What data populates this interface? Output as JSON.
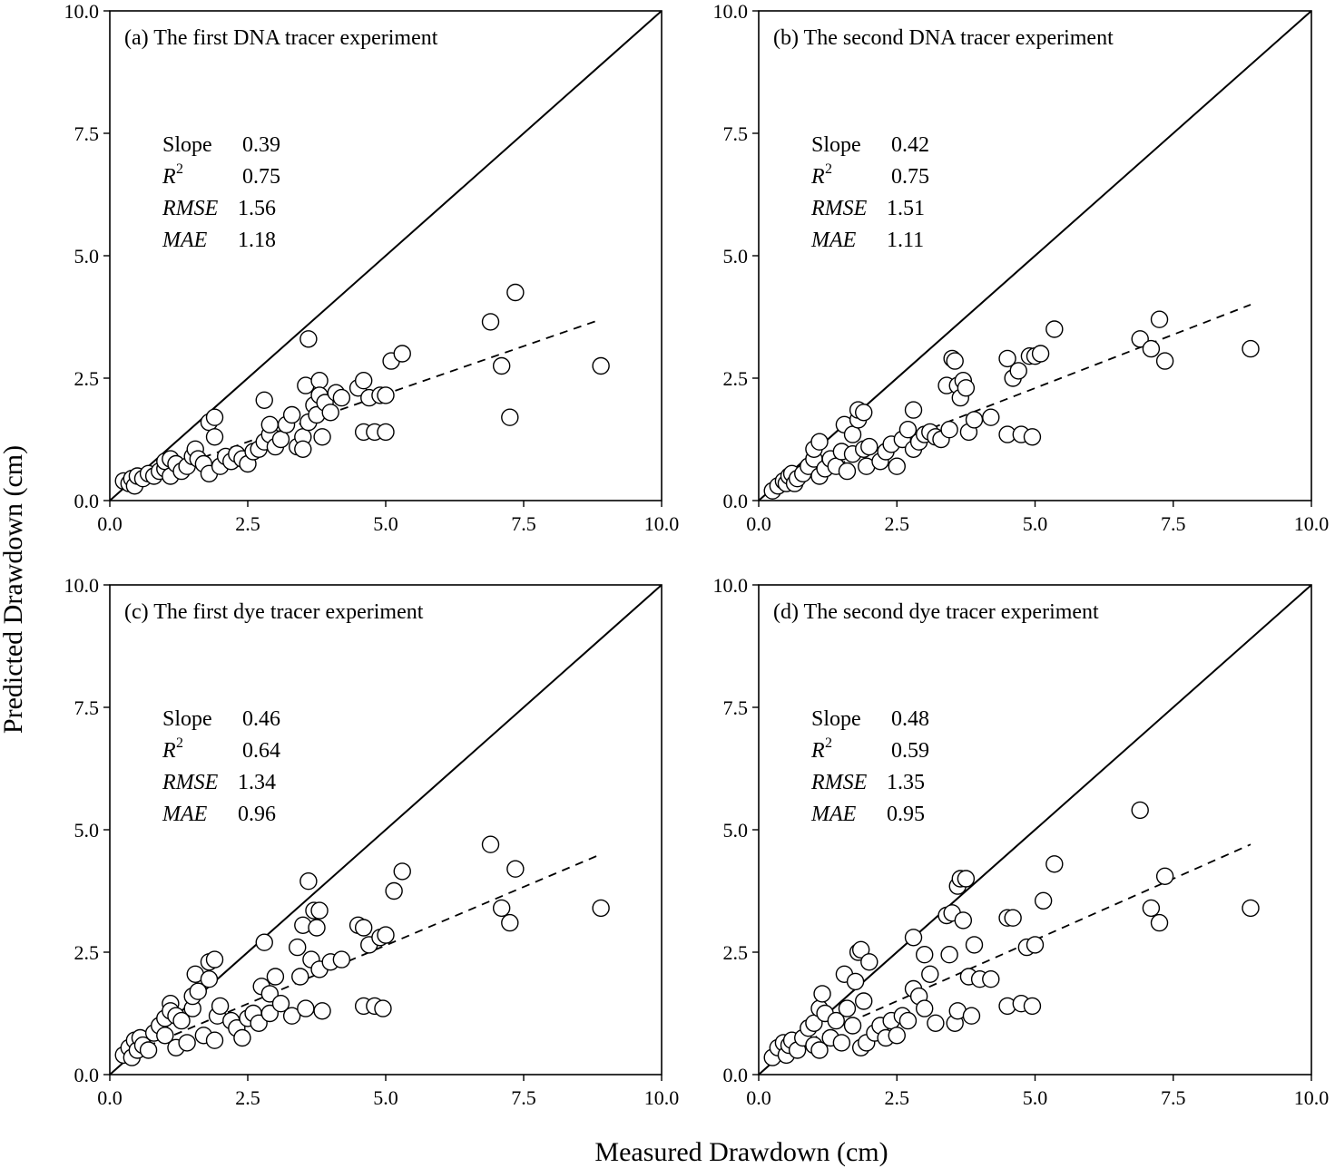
{
  "figure": {
    "xlabel": "Measured Drawdown (cm)",
    "ylabel": "Predicted Drawdown (cm)"
  },
  "chart_data": [
    {
      "type": "scatter",
      "panel": "a",
      "title": "(a) The first DNA tracer experiment",
      "xlim": [
        0,
        10
      ],
      "ylim": [
        0,
        10
      ],
      "xticks": [
        "0.0",
        "2.5",
        "5.0",
        "7.5",
        "10.0"
      ],
      "yticks": [
        "0.0",
        "2.5",
        "5.0",
        "7.5",
        "10.0"
      ],
      "reference_line": {
        "style": "solid",
        "from": [
          0,
          0
        ],
        "to": [
          10,
          10
        ]
      },
      "fit_line": {
        "style": "dashed",
        "from": [
          0.2,
          0.3
        ],
        "to": [
          8.9,
          3.7
        ]
      },
      "stats": [
        {
          "label": "Slope",
          "italic": false,
          "sup": "",
          "value": "0.39"
        },
        {
          "label": "R",
          "italic": true,
          "sup": "2",
          "value": "0.75"
        },
        {
          "label": "RMSE",
          "italic": true,
          "sup": "",
          "value": "1.56"
        },
        {
          "label": "MAE",
          "italic": true,
          "sup": "",
          "value": "1.18"
        }
      ],
      "points": [
        [
          0.25,
          0.4
        ],
        [
          0.35,
          0.35
        ],
        [
          0.4,
          0.45
        ],
        [
          0.45,
          0.3
        ],
        [
          0.5,
          0.5
        ],
        [
          0.6,
          0.45
        ],
        [
          0.7,
          0.55
        ],
        [
          0.8,
          0.5
        ],
        [
          0.9,
          0.6
        ],
        [
          1.0,
          0.65
        ],
        [
          1.0,
          0.8
        ],
        [
          1.1,
          0.85
        ],
        [
          1.1,
          0.5
        ],
        [
          1.2,
          0.75
        ],
        [
          1.3,
          0.6
        ],
        [
          1.4,
          0.7
        ],
        [
          1.5,
          0.9
        ],
        [
          1.55,
          1.05
        ],
        [
          1.6,
          0.85
        ],
        [
          1.7,
          0.75
        ],
        [
          1.8,
          0.55
        ],
        [
          1.8,
          1.6
        ],
        [
          1.9,
          1.7
        ],
        [
          1.9,
          1.3
        ],
        [
          2.0,
          0.7
        ],
        [
          2.1,
          0.9
        ],
        [
          2.2,
          0.8
        ],
        [
          2.3,
          0.95
        ],
        [
          2.4,
          0.85
        ],
        [
          2.5,
          0.75
        ],
        [
          2.6,
          1.0
        ],
        [
          2.7,
          1.05
        ],
        [
          2.8,
          1.2
        ],
        [
          2.8,
          2.05
        ],
        [
          2.9,
          1.35
        ],
        [
          2.9,
          1.55
        ],
        [
          3.0,
          1.1
        ],
        [
          3.1,
          1.25
        ],
        [
          3.2,
          1.55
        ],
        [
          3.3,
          1.75
        ],
        [
          3.4,
          1.1
        ],
        [
          3.5,
          1.3
        ],
        [
          3.5,
          1.05
        ],
        [
          3.55,
          2.35
        ],
        [
          3.6,
          1.6
        ],
        [
          3.6,
          3.3
        ],
        [
          3.7,
          1.95
        ],
        [
          3.75,
          1.75
        ],
        [
          3.8,
          2.45
        ],
        [
          3.8,
          2.15
        ],
        [
          3.85,
          1.3
        ],
        [
          3.9,
          2.0
        ],
        [
          4.0,
          1.8
        ],
        [
          4.1,
          2.2
        ],
        [
          4.2,
          2.1
        ],
        [
          4.5,
          2.3
        ],
        [
          4.6,
          2.45
        ],
        [
          4.7,
          2.1
        ],
        [
          4.6,
          1.4
        ],
        [
          4.8,
          1.4
        ],
        [
          4.9,
          2.15
        ],
        [
          5.0,
          1.4
        ],
        [
          5.0,
          2.15
        ],
        [
          5.1,
          2.85
        ],
        [
          5.3,
          3.0
        ],
        [
          6.9,
          3.65
        ],
        [
          7.1,
          2.75
        ],
        [
          7.25,
          1.7
        ],
        [
          7.35,
          4.25
        ],
        [
          8.9,
          2.75
        ]
      ]
    },
    {
      "type": "scatter",
      "panel": "b",
      "title": "(b) The second DNA tracer experiment",
      "xlim": [
        0,
        10
      ],
      "ylim": [
        0,
        10
      ],
      "xticks": [
        "0.0",
        "2.5",
        "5.0",
        "7.5",
        "10.0"
      ],
      "yticks": [
        "0.0",
        "2.5",
        "5.0",
        "7.5",
        "10.0"
      ],
      "reference_line": {
        "style": "solid",
        "from": [
          0,
          0
        ],
        "to": [
          10,
          10
        ]
      },
      "fit_line": {
        "style": "dashed",
        "from": [
          0.2,
          0.2
        ],
        "to": [
          8.9,
          4.0
        ]
      },
      "stats": [
        {
          "label": "Slope",
          "italic": false,
          "sup": "",
          "value": "0.42"
        },
        {
          "label": "R",
          "italic": true,
          "sup": "2",
          "value": "0.75"
        },
        {
          "label": "RMSE",
          "italic": true,
          "sup": "",
          "value": "1.51"
        },
        {
          "label": "MAE",
          "italic": true,
          "sup": "",
          "value": "1.11"
        }
      ],
      "points": [
        [
          0.25,
          0.2
        ],
        [
          0.35,
          0.3
        ],
        [
          0.45,
          0.4
        ],
        [
          0.5,
          0.35
        ],
        [
          0.55,
          0.5
        ],
        [
          0.6,
          0.55
        ],
        [
          0.65,
          0.35
        ],
        [
          0.7,
          0.45
        ],
        [
          0.8,
          0.55
        ],
        [
          0.9,
          0.7
        ],
        [
          1.0,
          0.85
        ],
        [
          1.0,
          1.05
        ],
        [
          1.1,
          1.2
        ],
        [
          1.1,
          0.5
        ],
        [
          1.2,
          0.65
        ],
        [
          1.3,
          0.85
        ],
        [
          1.4,
          0.7
        ],
        [
          1.5,
          1.0
        ],
        [
          1.55,
          1.55
        ],
        [
          1.6,
          0.6
        ],
        [
          1.7,
          1.35
        ],
        [
          1.7,
          0.95
        ],
        [
          1.8,
          1.65
        ],
        [
          1.8,
          1.85
        ],
        [
          1.9,
          1.8
        ],
        [
          1.9,
          1.05
        ],
        [
          1.95,
          0.7
        ],
        [
          2.0,
          1.1
        ],
        [
          2.2,
          0.8
        ],
        [
          2.3,
          1.0
        ],
        [
          2.4,
          1.15
        ],
        [
          2.5,
          0.7
        ],
        [
          2.6,
          1.25
        ],
        [
          2.7,
          1.45
        ],
        [
          2.8,
          1.85
        ],
        [
          2.8,
          1.05
        ],
        [
          2.9,
          1.2
        ],
        [
          3.0,
          1.35
        ],
        [
          3.1,
          1.4
        ],
        [
          3.2,
          1.3
        ],
        [
          3.3,
          1.25
        ],
        [
          3.4,
          2.35
        ],
        [
          3.45,
          1.45
        ],
        [
          3.5,
          2.9
        ],
        [
          3.55,
          2.85
        ],
        [
          3.6,
          2.35
        ],
        [
          3.65,
          2.1
        ],
        [
          3.7,
          2.45
        ],
        [
          3.75,
          2.3
        ],
        [
          3.8,
          1.4
        ],
        [
          3.9,
          1.65
        ],
        [
          4.2,
          1.7
        ],
        [
          4.5,
          2.9
        ],
        [
          4.5,
          1.35
        ],
        [
          4.6,
          2.5
        ],
        [
          4.7,
          2.65
        ],
        [
          4.75,
          1.35
        ],
        [
          4.9,
          2.95
        ],
        [
          4.95,
          1.3
        ],
        [
          5.0,
          2.95
        ],
        [
          5.1,
          3.0
        ],
        [
          5.35,
          3.5
        ],
        [
          6.9,
          3.3
        ],
        [
          7.1,
          3.1
        ],
        [
          7.25,
          3.7
        ],
        [
          7.35,
          2.85
        ],
        [
          8.9,
          3.1
        ]
      ]
    },
    {
      "type": "scatter",
      "panel": "c",
      "title": "(c) The first dye tracer experiment",
      "xlim": [
        0,
        10
      ],
      "ylim": [
        0,
        10
      ],
      "xticks": [
        "0.0",
        "2.5",
        "5.0",
        "7.5",
        "10.0"
      ],
      "yticks": [
        "0.0",
        "2.5",
        "5.0",
        "7.5",
        "10.0"
      ],
      "reference_line": {
        "style": "solid",
        "from": [
          0,
          0
        ],
        "to": [
          10,
          10
        ]
      },
      "fit_line": {
        "style": "dashed",
        "from": [
          0.2,
          0.35
        ],
        "to": [
          8.9,
          4.5
        ]
      },
      "stats": [
        {
          "label": "Slope",
          "italic": false,
          "sup": "",
          "value": "0.46"
        },
        {
          "label": "R",
          "italic": true,
          "sup": "2",
          "value": "0.64"
        },
        {
          "label": "RMSE",
          "italic": true,
          "sup": "",
          "value": "1.34"
        },
        {
          "label": "MAE",
          "italic": true,
          "sup": "",
          "value": "0.96"
        }
      ],
      "points": [
        [
          0.25,
          0.4
        ],
        [
          0.35,
          0.55
        ],
        [
          0.4,
          0.35
        ],
        [
          0.45,
          0.7
        ],
        [
          0.5,
          0.5
        ],
        [
          0.55,
          0.75
        ],
        [
          0.6,
          0.6
        ],
        [
          0.7,
          0.5
        ],
        [
          0.8,
          0.85
        ],
        [
          0.9,
          1.0
        ],
        [
          1.0,
          1.15
        ],
        [
          1.0,
          0.8
        ],
        [
          1.1,
          1.45
        ],
        [
          1.1,
          1.3
        ],
        [
          1.2,
          0.55
        ],
        [
          1.2,
          1.2
        ],
        [
          1.3,
          1.1
        ],
        [
          1.4,
          0.65
        ],
        [
          1.5,
          1.35
        ],
        [
          1.5,
          1.6
        ],
        [
          1.55,
          2.05
        ],
        [
          1.6,
          1.7
        ],
        [
          1.7,
          0.8
        ],
        [
          1.8,
          1.95
        ],
        [
          1.8,
          2.3
        ],
        [
          1.9,
          2.35
        ],
        [
          1.9,
          0.7
        ],
        [
          1.95,
          1.2
        ],
        [
          2.0,
          1.4
        ],
        [
          2.2,
          1.1
        ],
        [
          2.3,
          0.95
        ],
        [
          2.4,
          0.75
        ],
        [
          2.5,
          1.15
        ],
        [
          2.6,
          1.25
        ],
        [
          2.7,
          1.05
        ],
        [
          2.75,
          1.8
        ],
        [
          2.8,
          2.7
        ],
        [
          2.9,
          1.25
        ],
        [
          2.9,
          1.65
        ],
        [
          3.0,
          2.0
        ],
        [
          3.1,
          1.45
        ],
        [
          3.3,
          1.2
        ],
        [
          3.4,
          2.6
        ],
        [
          3.45,
          2.0
        ],
        [
          3.5,
          3.05
        ],
        [
          3.55,
          1.35
        ],
        [
          3.6,
          3.95
        ],
        [
          3.65,
          2.35
        ],
        [
          3.7,
          3.35
        ],
        [
          3.75,
          3.0
        ],
        [
          3.8,
          3.35
        ],
        [
          3.8,
          2.15
        ],
        [
          3.85,
          1.3
        ],
        [
          4.0,
          2.3
        ],
        [
          4.2,
          2.35
        ],
        [
          4.5,
          3.05
        ],
        [
          4.6,
          1.4
        ],
        [
          4.6,
          3.0
        ],
        [
          4.7,
          2.65
        ],
        [
          4.8,
          1.4
        ],
        [
          4.9,
          2.8
        ],
        [
          4.95,
          1.35
        ],
        [
          5.0,
          2.85
        ],
        [
          5.15,
          3.75
        ],
        [
          5.3,
          4.15
        ],
        [
          6.9,
          4.7
        ],
        [
          7.1,
          3.4
        ],
        [
          7.25,
          3.1
        ],
        [
          7.35,
          4.2
        ],
        [
          8.9,
          3.4
        ]
      ]
    },
    {
      "type": "scatter",
      "panel": "d",
      "title": "(d) The second dye tracer experiment",
      "xlim": [
        0,
        10
      ],
      "ylim": [
        0,
        10
      ],
      "xticks": [
        "0.0",
        "2.5",
        "5.0",
        "7.5",
        "10.0"
      ],
      "yticks": [
        "0.0",
        "2.5",
        "5.0",
        "7.5",
        "10.0"
      ],
      "reference_line": {
        "style": "solid",
        "from": [
          0,
          0
        ],
        "to": [
          10,
          10
        ]
      },
      "fit_line": {
        "style": "dashed",
        "from": [
          0.2,
          0.35
        ],
        "to": [
          8.9,
          4.7
        ]
      },
      "stats": [
        {
          "label": "Slope",
          "italic": false,
          "sup": "",
          "value": "0.48"
        },
        {
          "label": "R",
          "italic": true,
          "sup": "2",
          "value": "0.59"
        },
        {
          "label": "RMSE",
          "italic": true,
          "sup": "",
          "value": "1.35"
        },
        {
          "label": "MAE",
          "italic": true,
          "sup": "",
          "value": "0.95"
        }
      ],
      "points": [
        [
          0.25,
          0.35
        ],
        [
          0.35,
          0.55
        ],
        [
          0.45,
          0.65
        ],
        [
          0.5,
          0.4
        ],
        [
          0.55,
          0.6
        ],
        [
          0.6,
          0.7
        ],
        [
          0.7,
          0.5
        ],
        [
          0.8,
          0.75
        ],
        [
          0.9,
          0.95
        ],
        [
          1.0,
          1.05
        ],
        [
          1.0,
          0.6
        ],
        [
          1.1,
          1.35
        ],
        [
          1.1,
          0.5
        ],
        [
          1.15,
          1.65
        ],
        [
          1.2,
          1.25
        ],
        [
          1.3,
          0.75
        ],
        [
          1.4,
          1.1
        ],
        [
          1.5,
          0.65
        ],
        [
          1.55,
          2.05
        ],
        [
          1.6,
          1.35
        ],
        [
          1.7,
          1.0
        ],
        [
          1.75,
          1.9
        ],
        [
          1.8,
          2.5
        ],
        [
          1.85,
          2.55
        ],
        [
          1.85,
          0.55
        ],
        [
          1.9,
          1.5
        ],
        [
          1.95,
          0.65
        ],
        [
          2.0,
          2.3
        ],
        [
          2.1,
          0.85
        ],
        [
          2.2,
          1.0
        ],
        [
          2.3,
          0.75
        ],
        [
          2.4,
          1.1
        ],
        [
          2.5,
          0.8
        ],
        [
          2.6,
          1.2
        ],
        [
          2.7,
          1.1
        ],
        [
          2.8,
          1.75
        ],
        [
          2.8,
          2.8
        ],
        [
          2.9,
          1.6
        ],
        [
          3.0,
          1.35
        ],
        [
          3.0,
          2.45
        ],
        [
          3.1,
          2.05
        ],
        [
          3.2,
          1.05
        ],
        [
          3.4,
          3.25
        ],
        [
          3.45,
          2.45
        ],
        [
          3.5,
          3.3
        ],
        [
          3.55,
          1.05
        ],
        [
          3.6,
          3.85
        ],
        [
          3.65,
          4.0
        ],
        [
          3.6,
          1.3
        ],
        [
          3.7,
          3.15
        ],
        [
          3.75,
          4.0
        ],
        [
          3.8,
          2.0
        ],
        [
          3.85,
          1.2
        ],
        [
          3.9,
          2.65
        ],
        [
          4.0,
          1.95
        ],
        [
          4.2,
          1.95
        ],
        [
          4.5,
          3.2
        ],
        [
          4.5,
          1.4
        ],
        [
          4.6,
          3.2
        ],
        [
          4.75,
          1.45
        ],
        [
          4.85,
          2.6
        ],
        [
          4.95,
          1.4
        ],
        [
          5.0,
          2.65
        ],
        [
          5.15,
          3.55
        ],
        [
          5.35,
          4.3
        ],
        [
          6.9,
          5.4
        ],
        [
          7.1,
          3.4
        ],
        [
          7.25,
          3.1
        ],
        [
          7.35,
          4.05
        ],
        [
          8.9,
          3.4
        ]
      ]
    }
  ]
}
